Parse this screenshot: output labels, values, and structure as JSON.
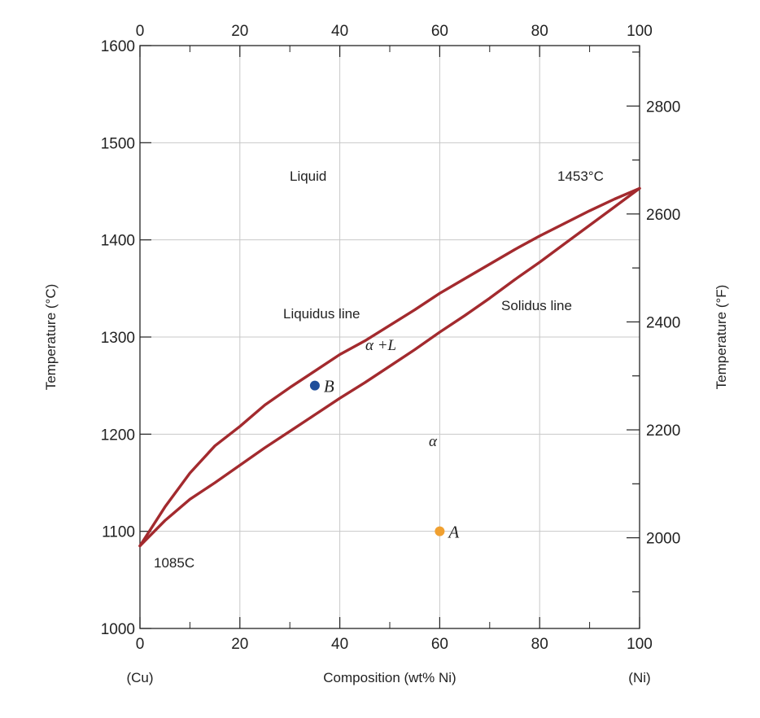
{
  "chart_data": {
    "type": "line",
    "xlabel": "Composition (wt% Ni)",
    "ylabel_left": "Temperature (°C)",
    "ylabel_right": "Temperature (°F)",
    "xlim": [
      0,
      100
    ],
    "ylim": [
      1000,
      1600
    ],
    "x_ticks": [
      0,
      20,
      40,
      60,
      80,
      100
    ],
    "x_tick_labels": [
      "0",
      "20",
      "40",
      "60",
      "80",
      "100"
    ],
    "y_ticks": [
      1000,
      1100,
      1200,
      1300,
      1400,
      1500,
      1600
    ],
    "y_tick_labels": [
      "1000",
      "1100",
      "1200",
      "1300",
      "1400",
      "1500",
      "1600"
    ],
    "y2_ticks": [
      2000,
      2200,
      2400,
      2600,
      2800
    ],
    "y2_tick_labels": [
      "2000",
      "2200",
      "2400",
      "2600",
      "2800"
    ],
    "x_end_labels": [
      "(Cu)",
      "(Ni)"
    ],
    "grid": true,
    "series": [
      {
        "name": "Liquidus line",
        "color": "#a32a2e",
        "x": [
          0,
          5,
          10,
          15,
          20,
          25,
          30,
          35,
          40,
          45,
          50,
          55,
          60,
          65,
          70,
          75,
          80,
          85,
          90,
          95,
          100
        ],
        "y": [
          1085,
          1125,
          1160,
          1188,
          1208,
          1230,
          1248,
          1265,
          1282,
          1296,
          1312,
          1328,
          1345,
          1360,
          1375,
          1390,
          1404,
          1417,
          1430,
          1442,
          1453
        ]
      },
      {
        "name": "Solidus line",
        "color": "#a32a2e",
        "x": [
          0,
          5,
          10,
          15,
          20,
          25,
          30,
          35,
          40,
          45,
          50,
          55,
          60,
          65,
          70,
          75,
          80,
          85,
          90,
          95,
          100
        ],
        "y": [
          1085,
          1111,
          1133,
          1150,
          1168,
          1186,
          1203,
          1220,
          1237,
          1253,
          1270,
          1287,
          1305,
          1322,
          1340,
          1359,
          1377,
          1396,
          1415,
          1434,
          1453
        ]
      }
    ],
    "points": [
      {
        "label": "A",
        "x": 60,
        "y": 1100,
        "color": "#f0a030"
      },
      {
        "label": "B",
        "x": 35,
        "y": 1250,
        "color": "#1f4e9a"
      }
    ],
    "annotations": {
      "liquid": "Liquid",
      "liquidus": "Liquidus line",
      "solidus": "Solidus line",
      "alpha_l": "α +L",
      "alpha": "α",
      "t_ni": "1453°C",
      "t_cu": "1085C"
    }
  }
}
